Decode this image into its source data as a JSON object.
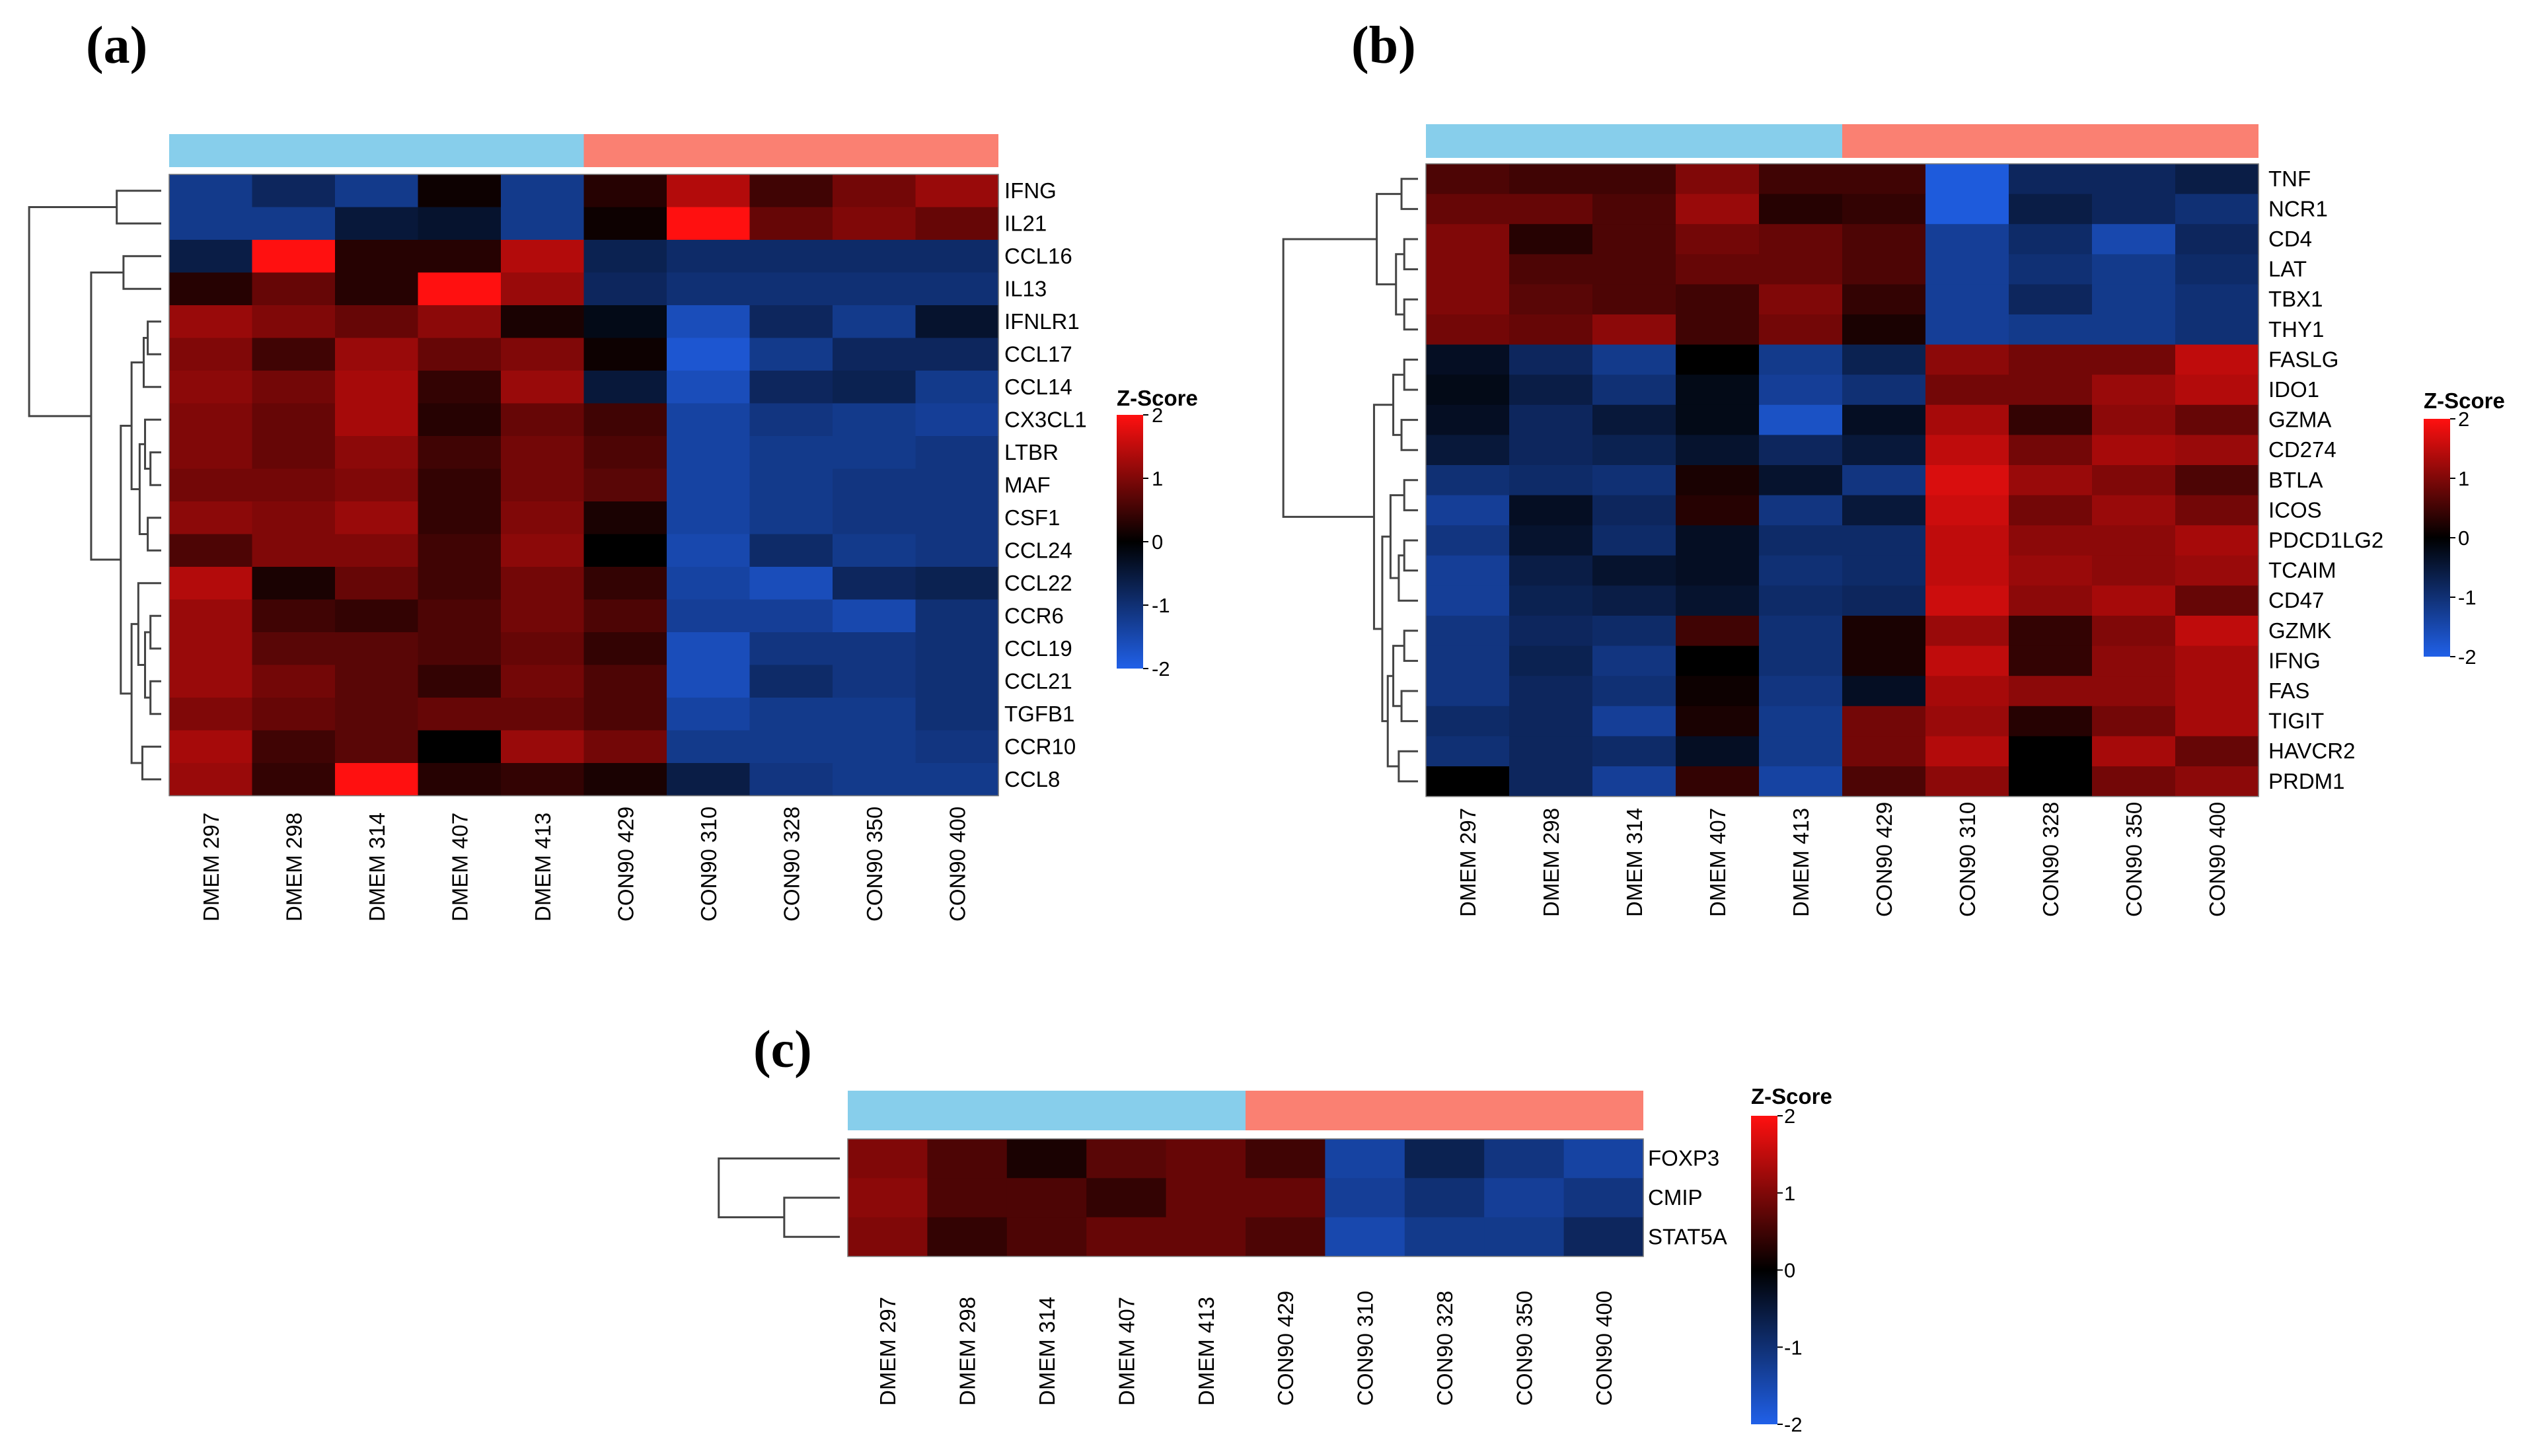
{
  "colors": {
    "group_dmem": "#87CEEB",
    "group_con90": "#FA8072",
    "scale_low": "#2060E8",
    "scale_mid": "#000000",
    "scale_high": "#FF1010"
  },
  "chart_data": [
    {
      "panel": "(a)",
      "type": "heatmap",
      "legend_title": "Z-Score",
      "scale_ticks": [
        "2",
        "1",
        "0",
        "-1",
        "-2"
      ],
      "columns": [
        "DMEM 297",
        "DMEM 298",
        "DMEM 314",
        "DMEM 407",
        "DMEM 413",
        "CON90 429",
        "CON90 310",
        "CON90 328",
        "CON90 350",
        "CON90 400"
      ],
      "rows": [
        "IFNG",
        "IL21",
        "CCL16",
        "IL13",
        "IFNLR1",
        "CCL17",
        "CCL14",
        "CX3CL1",
        "LTBR",
        "MAF",
        "CSF1",
        "CCL24",
        "CCL22",
        "CCR6",
        "CCL19",
        "CCL21",
        "TGFB1",
        "CCR10",
        "CCL8"
      ],
      "values": [
        [
          -1.2,
          -0.8,
          -1.2,
          0.1,
          -1.2,
          0.3,
          1.4,
          0.5,
          0.9,
          1.2
        ],
        [
          -1.2,
          -1.2,
          -0.5,
          -0.4,
          -1.2,
          0.1,
          2.0,
          0.8,
          1.0,
          0.8
        ],
        [
          -0.6,
          2.0,
          0.3,
          0.3,
          1.4,
          -0.7,
          -0.9,
          -0.9,
          -0.9,
          -0.9
        ],
        [
          0.3,
          0.8,
          0.3,
          2.0,
          1.2,
          -0.8,
          -1.0,
          -1.0,
          -1.0,
          -1.0
        ],
        [
          1.2,
          1.0,
          0.8,
          1.1,
          0.2,
          -0.2,
          -1.6,
          -0.8,
          -1.2,
          -0.4
        ],
        [
          1.0,
          0.5,
          1.2,
          0.8,
          1.0,
          0.1,
          -1.8,
          -1.2,
          -0.8,
          -0.8
        ],
        [
          1.1,
          0.9,
          1.3,
          0.4,
          1.2,
          -0.5,
          -1.6,
          -0.8,
          -0.7,
          -1.2
        ],
        [
          1.0,
          0.8,
          1.3,
          0.3,
          0.8,
          0.5,
          -1.4,
          -1.1,
          -1.2,
          -1.3
        ],
        [
          1.0,
          0.8,
          1.1,
          0.5,
          0.9,
          0.6,
          -1.4,
          -1.2,
          -1.2,
          -1.1
        ],
        [
          0.9,
          0.9,
          1.0,
          0.4,
          0.9,
          0.7,
          -1.4,
          -1.2,
          -1.1,
          -1.1
        ],
        [
          1.1,
          1.0,
          1.2,
          0.4,
          1.0,
          0.2,
          -1.4,
          -1.2,
          -1.1,
          -1.1
        ],
        [
          0.6,
          1.0,
          1.0,
          0.5,
          1.1,
          0.0,
          -1.5,
          -0.9,
          -1.2,
          -1.1
        ],
        [
          1.4,
          0.2,
          0.8,
          0.5,
          0.9,
          0.4,
          -1.4,
          -1.6,
          -0.8,
          -0.7
        ],
        [
          1.2,
          0.5,
          0.4,
          0.6,
          0.9,
          0.6,
          -1.3,
          -1.3,
          -1.5,
          -1.0
        ],
        [
          1.2,
          0.7,
          0.7,
          0.6,
          0.8,
          0.4,
          -1.6,
          -1.1,
          -1.1,
          -1.0
        ],
        [
          1.2,
          0.9,
          0.7,
          0.4,
          0.9,
          0.6,
          -1.6,
          -0.9,
          -1.1,
          -1.0
        ],
        [
          1.0,
          0.8,
          0.7,
          0.8,
          0.8,
          0.6,
          -1.4,
          -1.2,
          -1.2,
          -1.0
        ],
        [
          1.3,
          0.5,
          0.7,
          0.0,
          1.2,
          0.9,
          -1.2,
          -1.2,
          -1.2,
          -1.1
        ],
        [
          1.2,
          0.4,
          2.0,
          0.3,
          0.4,
          0.2,
          -0.6,
          -1.1,
          -1.2,
          -1.2
        ]
      ]
    },
    {
      "panel": "(b)",
      "type": "heatmap",
      "legend_title": "Z-Score",
      "scale_ticks": [
        "2",
        "1",
        "0",
        "-1",
        "-2"
      ],
      "columns": [
        "DMEM 297",
        "DMEM 298",
        "DMEM 314",
        "DMEM 407",
        "DMEM 413",
        "CON90 429",
        "CON90 310",
        "CON90 328",
        "CON90 350",
        "CON90 400"
      ],
      "rows": [
        "TNF",
        "NCR1",
        "CD4",
        "LAT",
        "TBX1",
        "THY1",
        "FASLG",
        "IDO1",
        "GZMA",
        "CD274",
        "BTLA",
        "ICOS",
        "PDCD1LG2",
        "TCAIM",
        "CD47",
        "GZMK",
        "IFNG",
        "FAS",
        "TIGIT",
        "HAVCR2",
        "PRDM1"
      ],
      "values": [
        [
          0.6,
          0.5,
          0.5,
          1.0,
          0.5,
          0.5,
          -1.9,
          -0.8,
          -0.8,
          -0.6
        ],
        [
          0.8,
          0.8,
          0.6,
          1.2,
          0.3,
          0.4,
          -1.9,
          -0.6,
          -0.8,
          -1.0
        ],
        [
          1.0,
          0.3,
          0.6,
          0.9,
          0.8,
          0.6,
          -1.3,
          -0.9,
          -1.5,
          -0.8
        ],
        [
          1.0,
          0.6,
          0.6,
          0.8,
          0.8,
          0.6,
          -1.3,
          -1.0,
          -1.2,
          -0.9
        ],
        [
          1.0,
          0.7,
          0.6,
          0.5,
          1.0,
          0.4,
          -1.3,
          -0.8,
          -1.2,
          -1.0
        ],
        [
          0.9,
          0.8,
          1.1,
          0.5,
          0.9,
          0.2,
          -1.3,
          -1.2,
          -1.2,
          -1.0
        ],
        [
          -0.3,
          -0.8,
          -1.2,
          0.0,
          -1.2,
          -0.7,
          1.1,
          0.9,
          0.9,
          1.5
        ],
        [
          -0.2,
          -0.6,
          -1.0,
          -0.2,
          -1.3,
          -1.0,
          0.9,
          0.9,
          1.2,
          1.4
        ],
        [
          -0.3,
          -0.8,
          -0.5,
          -0.2,
          -1.7,
          -0.3,
          1.3,
          0.4,
          1.1,
          0.8
        ],
        [
          -0.5,
          -0.8,
          -0.7,
          -0.4,
          -0.8,
          -0.5,
          1.5,
          0.9,
          1.3,
          1.2
        ],
        [
          -1.0,
          -0.9,
          -1.0,
          0.2,
          -0.4,
          -1.1,
          1.7,
          1.2,
          1.0,
          0.6
        ],
        [
          -1.3,
          -0.3,
          -0.8,
          0.3,
          -1.1,
          -0.5,
          1.6,
          0.9,
          1.2,
          0.9
        ],
        [
          -1.1,
          -0.4,
          -0.9,
          -0.3,
          -0.9,
          -0.9,
          1.5,
          1.1,
          1.1,
          1.3
        ],
        [
          -1.3,
          -0.6,
          -0.4,
          -0.3,
          -1.0,
          -0.9,
          1.5,
          1.2,
          1.1,
          1.2
        ],
        [
          -1.3,
          -0.7,
          -0.6,
          -0.4,
          -0.9,
          -0.8,
          1.6,
          1.1,
          1.3,
          0.8
        ],
        [
          -1.1,
          -0.8,
          -0.9,
          0.5,
          -1.0,
          0.2,
          1.2,
          0.4,
          1.0,
          1.5
        ],
        [
          -1.1,
          -0.7,
          -1.1,
          0.0,
          -1.0,
          0.2,
          1.5,
          0.4,
          1.1,
          1.3
        ],
        [
          -1.1,
          -0.8,
          -1.0,
          0.1,
          -1.1,
          -0.3,
          1.3,
          1.1,
          1.1,
          1.3
        ],
        [
          -0.9,
          -0.8,
          -1.3,
          0.2,
          -1.2,
          0.9,
          1.2,
          0.3,
          0.9,
          1.3
        ],
        [
          -1.0,
          -0.8,
          -0.9,
          -0.3,
          -1.2,
          0.9,
          1.4,
          0.0,
          1.3,
          0.8
        ],
        [
          0.0,
          -0.8,
          -1.3,
          0.4,
          -1.4,
          0.6,
          1.1,
          0.0,
          0.9,
          1.1
        ]
      ]
    },
    {
      "panel": "(c)",
      "type": "heatmap",
      "legend_title": "Z-Score",
      "scale_ticks": [
        "2",
        "1",
        "0",
        "-1",
        "-2"
      ],
      "columns": [
        "DMEM 297",
        "DMEM 298",
        "DMEM 314",
        "DMEM 407",
        "DMEM 413",
        "CON90 429",
        "CON90 310",
        "CON90 328",
        "CON90 350",
        "CON90 400"
      ],
      "rows": [
        "FOXP3",
        "CMIP",
        "STAT5A"
      ],
      "values": [
        [
          1.0,
          0.6,
          0.2,
          0.7,
          0.8,
          0.5,
          -1.4,
          -0.7,
          -1.1,
          -1.4
        ],
        [
          1.1,
          0.6,
          0.6,
          0.4,
          0.8,
          0.8,
          -1.3,
          -1.0,
          -1.3,
          -1.1
        ],
        [
          1.0,
          0.4,
          0.6,
          0.8,
          0.8,
          0.6,
          -1.5,
          -1.2,
          -1.2,
          -0.8
        ]
      ]
    }
  ]
}
